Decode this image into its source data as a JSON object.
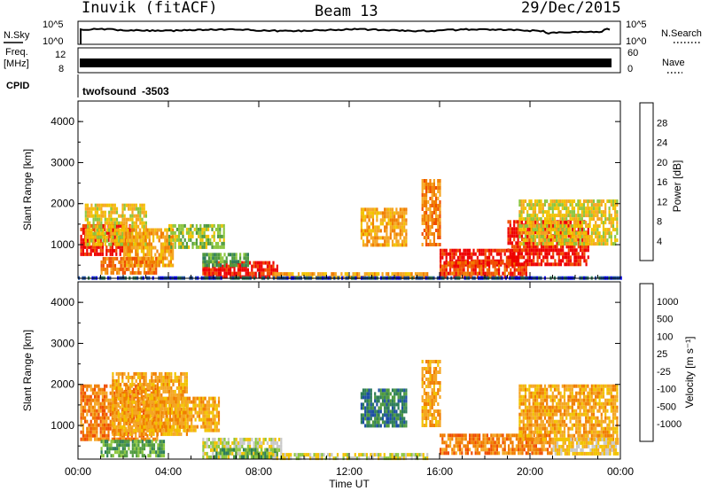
{
  "header": {
    "title": "Inuvik (fitACF)",
    "beam": "Beam 13",
    "date": "29/Dec/2015"
  },
  "sky_panel": {
    "left_label": "N.Sky",
    "right_label": "N.Search",
    "ticks_left": [
      "10^5",
      "10^0"
    ],
    "ticks_right": [
      "10^5",
      "10^0"
    ]
  },
  "freq_panel": {
    "left_label_1": "Freq.",
    "left_label_2": "[MHz]",
    "ticks_left": [
      "12",
      "8"
    ],
    "ticks_right": [
      "60",
      "0"
    ],
    "right_label": "Nave"
  },
  "cpid": {
    "label": "CPID",
    "program": "twofsound",
    "id": "-3503"
  },
  "colors": {
    "frame": "#000000",
    "power_scale": [
      "#0000ff",
      "#1d4fa3",
      "#2e7d5a",
      "#4f9a3f",
      "#8cc63f",
      "#f2c200",
      "#f5a623",
      "#f07d00",
      "#f04e00",
      "#ee0000"
    ],
    "velocity_scale": [
      "#ee0000",
      "#f04e00",
      "#f07d00",
      "#f5a623",
      "#f2c200",
      "#c8c8c8",
      "#8cc63f",
      "#4f9a3f",
      "#2e7d5a",
      "#1d4fa3"
    ]
  },
  "chart_data": [
    {
      "type": "heatmap",
      "title": "",
      "ylabel": "Slant Range [km]",
      "xlabel": "",
      "ylim": [
        180,
        4500
      ],
      "yticks": [
        "4000",
        "3000",
        "2000",
        "1000"
      ],
      "colorbar_label": "Power [dB]",
      "colorbar_ticks": [
        "28",
        "24",
        "20",
        "16",
        "12",
        "8",
        "4"
      ],
      "colorbar_range": [
        0,
        30
      ],
      "x_hours_range": [
        0,
        24
      ],
      "regions": [
        {
          "t0": 0.1,
          "t1": 2.4,
          "r0": 800,
          "r1": 1500,
          "level": 9
        },
        {
          "t0": 0.3,
          "t1": 3.0,
          "r0": 1000,
          "r1": 2000,
          "level": 5
        },
        {
          "t0": 2.0,
          "t1": 4.2,
          "r0": 500,
          "r1": 1400,
          "level": 6
        },
        {
          "t0": 1.0,
          "t1": 3.5,
          "r0": 300,
          "r1": 700,
          "level": 7
        },
        {
          "t0": 4.0,
          "t1": 6.5,
          "r0": 900,
          "r1": 1500,
          "level": 4
        },
        {
          "t0": 5.5,
          "t1": 8.8,
          "r0": 250,
          "r1": 600,
          "level": 9
        },
        {
          "t0": 5.5,
          "t1": 7.5,
          "r0": 500,
          "r1": 800,
          "level": 3
        },
        {
          "t0": 8.6,
          "t1": 15.5,
          "r0": 220,
          "r1": 330,
          "level": 6
        },
        {
          "t0": 12.5,
          "t1": 14.5,
          "r0": 1000,
          "r1": 1900,
          "level": 6
        },
        {
          "t0": 15.2,
          "t1": 16.0,
          "r0": 1000,
          "r1": 2600,
          "level": 7
        },
        {
          "t0": 16.0,
          "t1": 19.5,
          "r0": 500,
          "r1": 900,
          "level": 9
        },
        {
          "t0": 16.0,
          "t1": 19.8,
          "r0": 250,
          "r1": 600,
          "level": 8
        },
        {
          "t0": 19.0,
          "t1": 22.6,
          "r0": 500,
          "r1": 1600,
          "level": 9
        },
        {
          "t0": 19.5,
          "t1": 23.9,
          "r0": 1000,
          "r1": 2100,
          "level": 5
        },
        {
          "t0": 0.0,
          "t1": 24.0,
          "r0": 190,
          "r1": 230,
          "level": 1
        }
      ]
    },
    {
      "type": "heatmap",
      "title": "",
      "ylabel": "Slant Range [km]",
      "xlabel": "Time UT",
      "ylim": [
        180,
        4500
      ],
      "yticks": [
        "4000",
        "3000",
        "2000",
        "1000"
      ],
      "xticks": [
        "00:00",
        "04:00",
        "08:00",
        "12:00",
        "16:00",
        "20:00",
        "00:00"
      ],
      "colorbar_label": "Velocity [m s⁻¹]",
      "colorbar_ticks": [
        "1000",
        "500",
        "100",
        "25",
        "-25",
        "-100",
        "-500",
        "-1000"
      ],
      "colorbar_range": [
        -1000,
        1000
      ],
      "x_hours_range": [
        0,
        24
      ],
      "regions": [
        {
          "t0": 0.1,
          "t1": 3.5,
          "r0": 700,
          "r1": 2000,
          "level": 2
        },
        {
          "t0": 1.5,
          "t1": 4.8,
          "r0": 800,
          "r1": 2300,
          "level": 3
        },
        {
          "t0": 3.0,
          "t1": 6.2,
          "r0": 900,
          "r1": 1700,
          "level": 3
        },
        {
          "t0": 1.0,
          "t1": 3.8,
          "r0": 250,
          "r1": 650,
          "level": 7
        },
        {
          "t0": 5.5,
          "t1": 9.0,
          "r0": 250,
          "r1": 700,
          "level": 5
        },
        {
          "t0": 6.0,
          "t1": 8.8,
          "r0": 220,
          "r1": 450,
          "level": 7
        },
        {
          "t0": 8.6,
          "t1": 15.5,
          "r0": 220,
          "r1": 330,
          "level": 5
        },
        {
          "t0": 12.5,
          "t1": 14.5,
          "r0": 1000,
          "r1": 1900,
          "level": 8
        },
        {
          "t0": 15.2,
          "t1": 16.0,
          "r0": 1000,
          "r1": 2600,
          "level": 3
        },
        {
          "t0": 16.0,
          "t1": 21.0,
          "r0": 300,
          "r1": 800,
          "level": 2
        },
        {
          "t0": 19.5,
          "t1": 23.9,
          "r0": 700,
          "r1": 2000,
          "level": 3
        },
        {
          "t0": 21.0,
          "t1": 23.9,
          "r0": 300,
          "r1": 700,
          "level": 4
        }
      ]
    }
  ]
}
